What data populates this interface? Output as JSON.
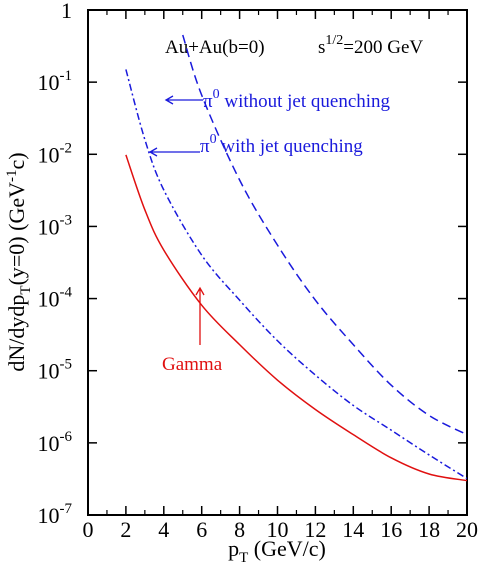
{
  "chart_data": {
    "type": "line",
    "log_y": true,
    "xlabel": [
      "p",
      "T",
      " (GeV/c)"
    ],
    "ylabel": [
      "dN/dydp",
      "T",
      "(y=0) (GeV",
      "-1",
      "c)"
    ],
    "xlim": [
      0,
      20
    ],
    "xticks": [
      0,
      2,
      4,
      6,
      8,
      10,
      12,
      14,
      16,
      18,
      20
    ],
    "xminor": [
      1,
      3,
      5,
      7,
      9,
      11,
      13,
      15,
      17,
      19
    ],
    "ylim": [
      1e-07,
      1
    ],
    "yticks": [
      1,
      {
        "value": 0.1,
        "label": "10",
        "exponent": "-1"
      },
      {
        "value": 0.01,
        "label": "10",
        "exponent": "-2"
      },
      {
        "value": 0.001,
        "label": "10",
        "exponent": "-3"
      },
      {
        "value": 0.0001,
        "label": "10",
        "exponent": "-4"
      },
      {
        "value": 1e-05,
        "label": "10",
        "exponent": "-5"
      },
      {
        "value": 1e-06,
        "label": "10",
        "exponent": "-6"
      },
      {
        "value": 1e-07,
        "label": "10",
        "exponent": "-7"
      }
    ],
    "annotations": [
      {
        "text": [
          "Au+Au(b=0)"
        ],
        "color": "#000000"
      },
      {
        "text": [
          "s",
          "1/2",
          "=200 GeV"
        ],
        "color": "#000000"
      },
      {
        "text": [
          "π",
          "0",
          " without jet quenching"
        ],
        "color": "#1a1adc"
      },
      {
        "text": [
          "π",
          "0",
          " with jet quenching"
        ],
        "color": "#1a1adc"
      },
      {
        "text": [
          "Gamma"
        ],
        "color": "#e01010"
      }
    ],
    "series": [
      {
        "color": "#1a1adc",
        "dash": "dashed",
        "x": [
          5,
          6,
          8,
          10,
          12,
          14,
          16,
          18,
          20
        ],
        "values": [
          0.45,
          0.066,
          0.0044,
          0.00055,
          9.5e-05,
          2.3e-05,
          6.3e-06,
          2.4e-06,
          1.3e-06
        ]
      },
      {
        "color": "#1a1adc",
        "dash": "dashdot",
        "x": [
          2,
          3,
          4,
          6,
          8,
          10,
          12,
          14,
          16,
          18,
          20
        ],
        "values": [
          0.15,
          0.016,
          0.0032,
          0.0004,
          9.5e-05,
          2.6e-05,
          8.7e-06,
          3.3e-06,
          1.5e-06,
          6.8e-07,
          3.2e-07
        ]
      },
      {
        "color": "#e01010",
        "dash": "solid",
        "x": [
          2,
          3,
          4,
          6,
          8,
          10,
          12,
          14,
          16,
          18,
          20
        ],
        "values": [
          0.0098,
          0.0017,
          0.00047,
          8.1e-05,
          2.3e-05,
          7.4e-06,
          2.9e-06,
          1.3e-06,
          6.2e-07,
          3.7e-07,
          3e-07
        ]
      }
    ]
  }
}
